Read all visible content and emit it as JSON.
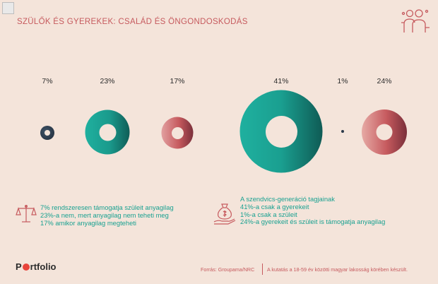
{
  "title": "SZÜLŐK ÉS GYEREKEK: CSALÁD ÉS ÖNGONDOSKODÁS",
  "stats": [
    {
      "label": "7%",
      "value": 7,
      "color": "navy"
    },
    {
      "label": "23%",
      "value": 23,
      "color": "teal"
    },
    {
      "label": "17%",
      "value": 17,
      "color": "rose"
    },
    {
      "label": "41%",
      "value": 41,
      "color": "teal"
    },
    {
      "label": "1%",
      "value": 1,
      "color": "navy"
    },
    {
      "label": "24%",
      "value": 24,
      "color": "rose"
    }
  ],
  "left_block": {
    "lines": [
      "7% rendszeresen támogatja szüleit anyagilag",
      "23%-a nem, mert anyagilag nem teheti meg",
      "17% amikor anyagilag megteheti"
    ]
  },
  "right_block": {
    "lines": [
      "A szendvics-generáció tagjainak",
      "41%-a csak a gyerekeit",
      "1%-a csak a szüleit",
      "24%-a gyerekeit és szüleit is támogatja anyagilag"
    ]
  },
  "footer": {
    "logo_pre": "P",
    "logo_post": "rtfolio",
    "source": "Forrás: Groupama/NRC",
    "note": "A kutatás a 18-59 év közötti magyar lakosság körében készült."
  },
  "colors": {
    "teal": "#1aa191",
    "rose": "#c65a5e",
    "navy": "#2b3a4a",
    "background": "#f4e4da"
  }
}
